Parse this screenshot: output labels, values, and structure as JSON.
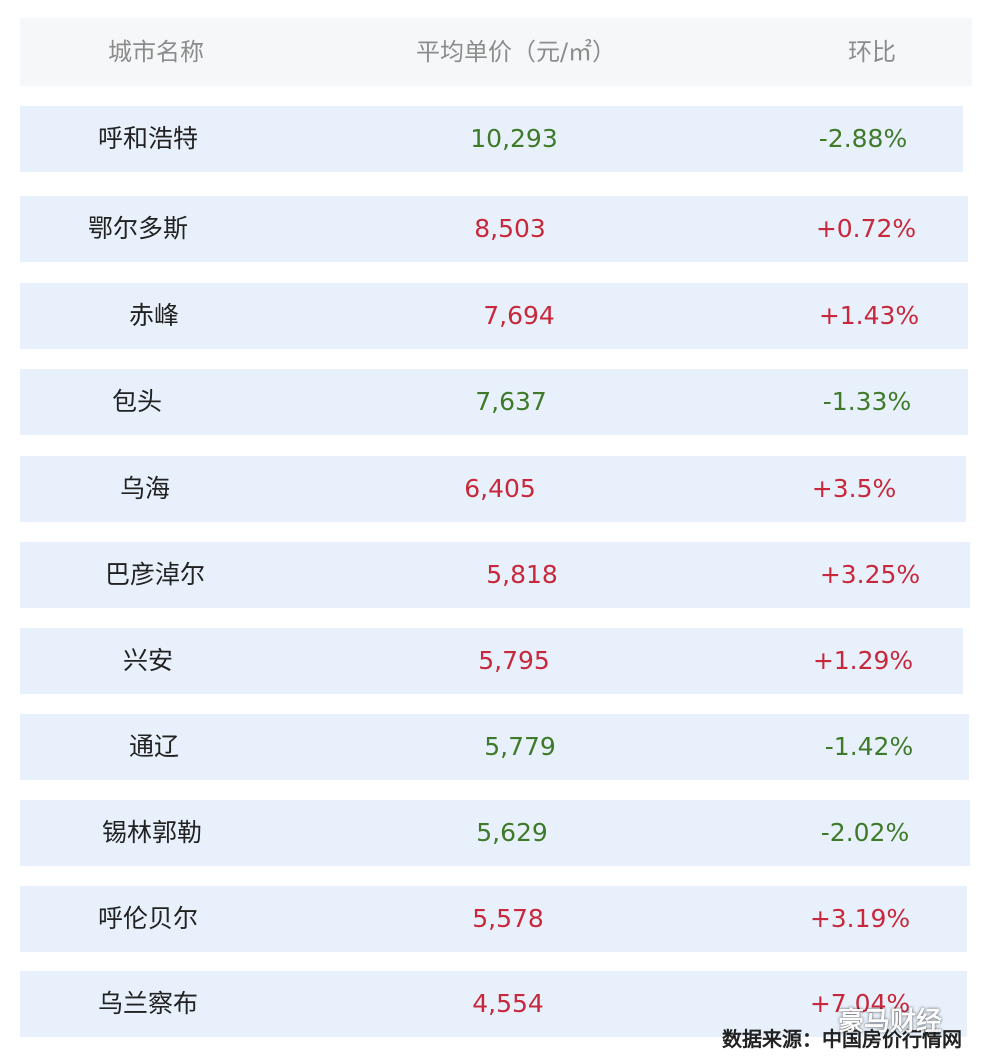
{
  "header": {
    "city": "城市名称",
    "price": "平均单价（元/㎡）",
    "change": "环比"
  },
  "rows": [
    {
      "city": "呼和浩特",
      "price": "10,293",
      "change": "-2.88%",
      "direction": "down"
    },
    {
      "city": "鄂尔多斯",
      "price": "8,503",
      "change": "+0.72%",
      "direction": "up"
    },
    {
      "city": "赤峰",
      "price": "7,694",
      "change": "+1.43%",
      "direction": "up"
    },
    {
      "city": "包头",
      "price": "7,637",
      "change": "-1.33%",
      "direction": "down"
    },
    {
      "city": "乌海",
      "price": "6,405",
      "change": "+3.5%",
      "direction": "up"
    },
    {
      "city": "巴彦淖尔",
      "price": "5,818",
      "change": "+3.25%",
      "direction": "up"
    },
    {
      "city": "兴安",
      "price": "5,795",
      "change": "+1.29%",
      "direction": "up"
    },
    {
      "city": "通辽",
      "price": "5,779",
      "change": "-1.42%",
      "direction": "down"
    },
    {
      "city": "锡林郭勒",
      "price": "5,629",
      "change": "-2.02%",
      "direction": "down"
    },
    {
      "city": "呼伦贝尔",
      "price": "5,578",
      "change": "+3.19%",
      "direction": "up"
    },
    {
      "city": "乌兰察布",
      "price": "4,554",
      "change": "+7.04%",
      "direction": "up"
    }
  ],
  "source": "数据来源：中国房价行情网",
  "watermark": "豪马财经",
  "colors": {
    "up": "#c8283c",
    "down": "#3f7a2a",
    "row_background": "#e8f1fb",
    "header_background": "#f6f7f8"
  }
}
